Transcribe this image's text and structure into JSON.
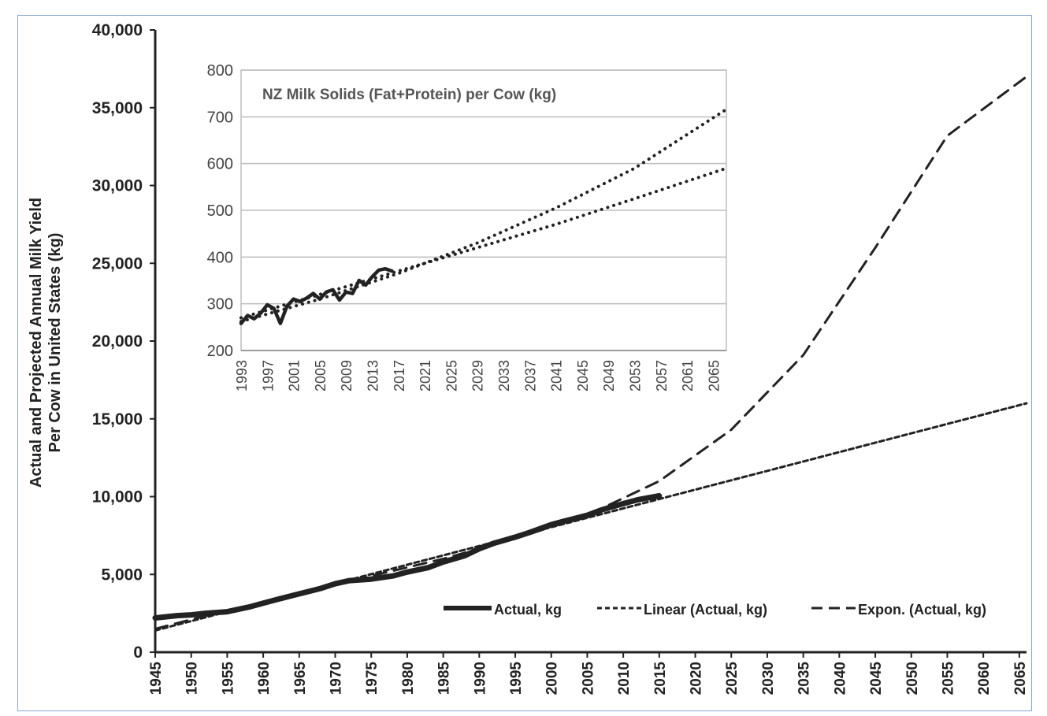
{
  "chart_data": [
    {
      "type": "line",
      "title": "",
      "ylabel": "Actual and Projected Annual Milk Yield Per Cow in United States (kg)",
      "ylabel_lines": [
        "Actual and Projected Annual Milk Yield",
        "Per Cow in United States (kg)"
      ],
      "xlabel": "",
      "xlim": [
        1945,
        2066
      ],
      "ylim": [
        0,
        40000
      ],
      "x_ticks": [
        "1945",
        "1950",
        "1955",
        "1960",
        "1965",
        "1970",
        "1975",
        "1980",
        "1985",
        "1990",
        "1995",
        "2000",
        "2005",
        "2010",
        "2015",
        "2020",
        "2025",
        "2030",
        "2035",
        "2040",
        "2045",
        "2050",
        "2055",
        "2060",
        "2065"
      ],
      "y_ticks": [
        "0",
        "5,000",
        "10,000",
        "15,000",
        "20,000",
        "25,000",
        "30,000",
        "35,000",
        "40,000"
      ],
      "grid": false,
      "legend_position": "bottom-right",
      "series": [
        {
          "name": "Actual, kg",
          "style": "solid-thick",
          "x": [
            1945,
            1948,
            1950,
            1952,
            1955,
            1958,
            1960,
            1962,
            1965,
            1968,
            1970,
            1972,
            1975,
            1978,
            1980,
            1983,
            1985,
            1988,
            1990,
            1992,
            1995,
            1997,
            2000,
            2002,
            2005,
            2007,
            2010,
            2012,
            2015
          ],
          "y": [
            2200,
            2350,
            2400,
            2500,
            2600,
            2900,
            3150,
            3400,
            3750,
            4100,
            4400,
            4600,
            4700,
            4900,
            5150,
            5450,
            5800,
            6200,
            6650,
            7000,
            7400,
            7700,
            8200,
            8450,
            8800,
            9150,
            9550,
            9800,
            10050
          ]
        },
        {
          "name": "Linear (Actual, kg)",
          "style": "short-dash",
          "x": [
            1945,
            2066
          ],
          "y": [
            1400,
            16000
          ]
        },
        {
          "name": "Expon. (Actual, kg)",
          "style": "long-dash",
          "x": [
            1945,
            1955,
            1965,
            1975,
            1985,
            1995,
            2005,
            2015,
            2025,
            2035,
            2045,
            2055,
            2066
          ],
          "y": [
            1500,
            2700,
            3700,
            4900,
            6000,
            7300,
            8800,
            11000,
            14300,
            19100,
            26000,
            33200,
            37000
          ]
        }
      ]
    },
    {
      "type": "line",
      "title": "NZ Milk Solids (Fat+Protein) per Cow (kg)",
      "xlim": [
        1993,
        2067
      ],
      "ylim": [
        200,
        800
      ],
      "x_ticks": [
        "1993",
        "1997",
        "2001",
        "2005",
        "2009",
        "2013",
        "2017",
        "2021",
        "2025",
        "2029",
        "2033",
        "2037",
        "2041",
        "2045",
        "2049",
        "2053",
        "2057",
        "2061",
        "2065"
      ],
      "y_ticks": [
        "200",
        "300",
        "400",
        "500",
        "600",
        "700",
        "800"
      ],
      "grid": true,
      "series": [
        {
          "style": "solid",
          "x": [
            1993,
            1994,
            1995,
            1996,
            1997,
            1998,
            1999,
            2000,
            2001,
            2002,
            2003,
            2004,
            2005,
            2006,
            2007,
            2008,
            2009,
            2010,
            2011,
            2012,
            2013,
            2014,
            2015,
            2016
          ],
          "y": [
            258,
            275,
            268,
            280,
            298,
            290,
            258,
            295,
            310,
            305,
            312,
            322,
            310,
            325,
            330,
            308,
            325,
            322,
            350,
            340,
            358,
            372,
            375,
            370
          ]
        },
        {
          "style": "dotted",
          "x": [
            1993,
            2005,
            2017,
            2029,
            2041,
            2053,
            2067
          ],
          "y": [
            262,
            310,
            365,
            430,
            505,
            590,
            716
          ]
        },
        {
          "style": "dotted",
          "x": [
            1993,
            2005,
            2017,
            2029,
            2041,
            2053,
            2067
          ],
          "y": [
            270,
            320,
            370,
            420,
            470,
            525,
            590
          ]
        }
      ]
    }
  ]
}
